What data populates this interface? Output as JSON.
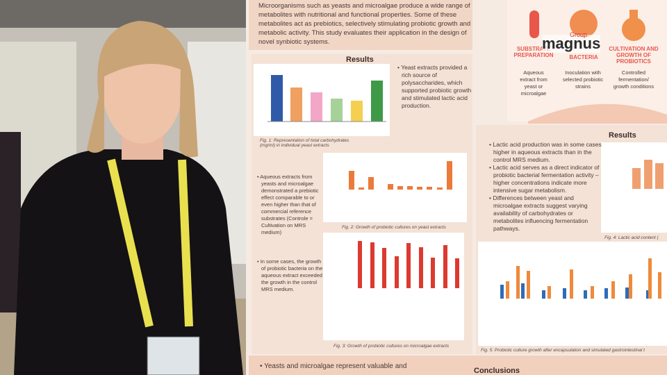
{
  "poster": {
    "intro": "Microorganisms such as yeasts and microalgae produce a wide range of metabolites with nutritional and functional properties. Some of these metabolites act as prebiotics, selectively stimulating probiotic growth and metabolic activity. This study evaluates their application in the design of novel synbiotic systems.",
    "results_left": {
      "heading": "Results",
      "bullet_1": "Yeast extracts provided a rich source of polysaccharides, which supported probiotic growth and stimulated lactic acid production.",
      "bullet_2": "Aqueous extracts from yeasts and microalgae demonstrated a prebiotic effect comparable to or even higher than that of commercial reference substrates (Controle = Cultivation on MRS medium)",
      "bullet_3": "In some cases, the growth of probiotic bacteria on the aqueous extract exceeded the growth in the control MRS medium.",
      "fig_1": "Fig. 1: Representation of total carbohydrates (mg/ml) in individual yeast extracts",
      "fig_2": "Fig. 2: Growth of probiotic cultures on yeast extracts",
      "fig_3": "Fig. 3: Growth of probiotic cultures on microalgae extracts"
    },
    "process": {
      "step_1_title": "SUBSTRATE PREPARATION",
      "step_1_text": "Aqueous extract from yeast or microalgae",
      "step_2_title": "BACTERIA",
      "step_2_text": "Inoculation with selected probiotic strains",
      "step_3_title": "CULTIVATION AND GROWTH OF PROBIOTICS",
      "step_3_text": "Controlled fermentation/ growth conditions"
    },
    "logo": {
      "name": "magnus",
      "sub": "Group"
    },
    "results_right": {
      "heading": "Results",
      "bullet_1": "Lactic acid production was in some cases higher in aqueous extracts than in the control MRS medium.",
      "bullet_2": "Lactic acid serves as a direct indicator of probiotic bacterial fermentation activity – higher concentrations indicate more intensive sugar metabolism.",
      "bullet_3": "Differences between yeast and microalgae extracts suggest varying availability of carbohydrates or metabolites influencing fermentation pathways.",
      "fig_4": "Fig. 4: Lactic acid content (",
      "fig_5": "Fig. 5: Probiotic culture growth after encapsulation and simulated gastrointestinal t"
    },
    "conclusion_line": "Yeasts and microalgae represent valuable and",
    "conclusions": "Conclusions"
  }
}
